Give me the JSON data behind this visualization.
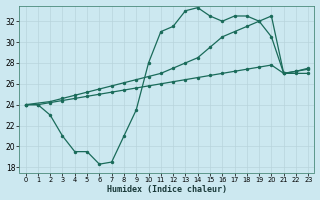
{
  "xlabel": "Humidex (Indice chaleur)",
  "bg_color": "#cce8f0",
  "grid_color": "#c0dde8",
  "line_color": "#1a6b5a",
  "xlim": [
    -0.5,
    23.5
  ],
  "ylim": [
    17.5,
    33.5
  ],
  "xticks": [
    0,
    1,
    2,
    3,
    4,
    5,
    6,
    7,
    8,
    9,
    10,
    11,
    12,
    13,
    14,
    15,
    16,
    17,
    18,
    19,
    20,
    21,
    22,
    23
  ],
  "yticks": [
    18,
    20,
    22,
    24,
    26,
    28,
    30,
    32
  ],
  "line1": {
    "x": [
      0,
      1,
      2,
      3,
      4,
      5,
      6,
      7,
      8,
      9,
      10,
      11,
      12,
      13,
      14,
      15,
      16,
      17,
      18,
      19,
      20,
      21,
      22,
      23
    ],
    "y": [
      24,
      24,
      23,
      21,
      19.5,
      19.5,
      18.3,
      18.5,
      21,
      23.5,
      28,
      31,
      31.5,
      33,
      33.3,
      32.5,
      32,
      32.5,
      32.5,
      32,
      30.5,
      27,
      27,
      27
    ]
  },
  "line2": {
    "x": [
      0,
      1,
      2,
      3,
      4,
      5,
      6,
      7,
      8,
      9,
      10,
      11,
      12,
      13,
      14,
      15,
      16,
      17,
      18,
      19,
      20,
      21,
      22,
      23
    ],
    "y": [
      24,
      24,
      24.2,
      24.4,
      24.6,
      24.8,
      25.0,
      25.2,
      25.4,
      25.6,
      25.8,
      26.0,
      26.2,
      26.4,
      26.6,
      26.8,
      27.0,
      27.2,
      27.4,
      27.6,
      27.8,
      27.0,
      27.2,
      27.4
    ]
  },
  "line3": {
    "x": [
      0,
      2,
      3,
      4,
      5,
      6,
      7,
      8,
      9,
      10,
      11,
      12,
      13,
      14,
      15,
      16,
      17,
      18,
      19,
      20,
      21,
      22,
      23
    ],
    "y": [
      24,
      24.3,
      24.6,
      24.9,
      25.2,
      25.5,
      25.8,
      26.1,
      26.4,
      26.7,
      27.0,
      27.5,
      28.0,
      28.5,
      29.5,
      30.5,
      31.0,
      31.5,
      32.0,
      32.5,
      27.0,
      27.2,
      27.5
    ]
  }
}
